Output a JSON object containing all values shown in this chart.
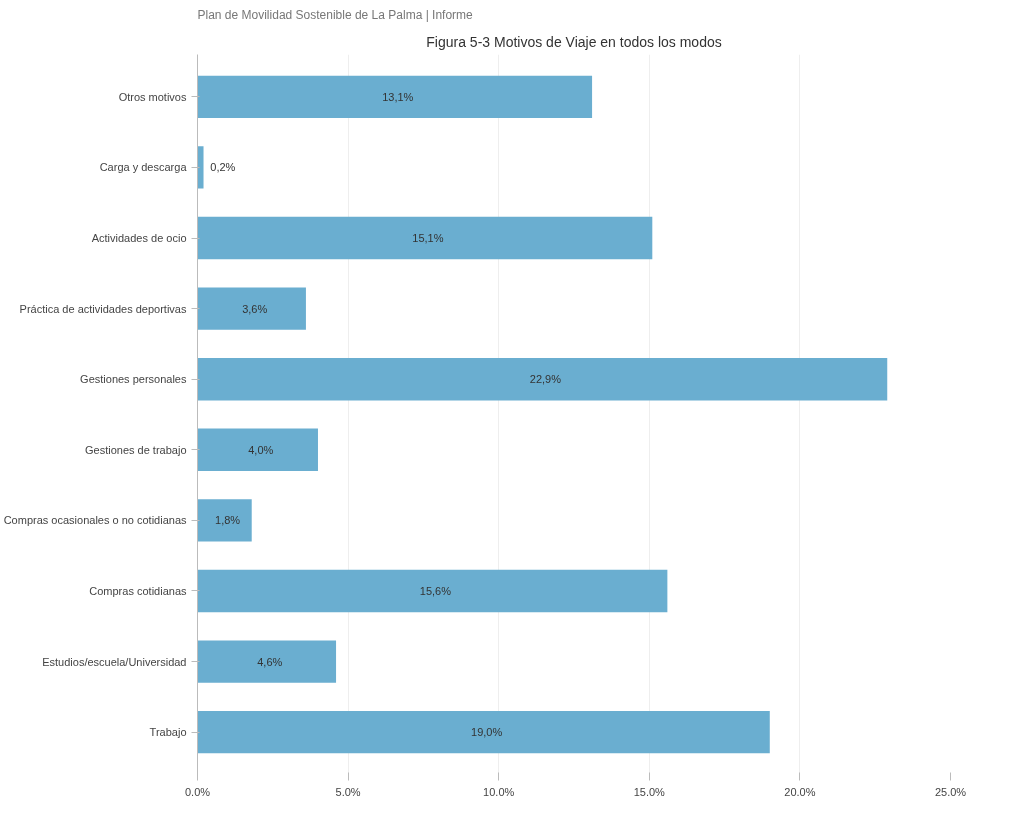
{
  "chart_data": {
    "type": "bar",
    "orientation": "horizontal",
    "title": "Figura 5-3 Motivos de Viaje en todos los modos",
    "annotations": [
      "Plan de Movilidad Sostenible de La Palma | Informe"
    ],
    "categories": [
      "Otros motivos",
      "Carga y descarga",
      "Actividades de ocio",
      "Práctica de actividades deportivas",
      "Gestiones personales",
      "Gestiones de trabajo",
      "Compras ocasionales o no cotidianas",
      "Compras cotidianas",
      "Estudios/escuela/Universidad",
      "Trabajo"
    ],
    "values": [
      13.1,
      0.2,
      15.1,
      3.6,
      22.9,
      4.0,
      1.8,
      15.6,
      4.6,
      19.0
    ],
    "value_labels": [
      "13,1%",
      "0,2%",
      "15,1%",
      "3,6%",
      "22,9%",
      "4,0%",
      "1,8%",
      "15,6%",
      "4,6%",
      "19,0%"
    ],
    "color": "#6aaed0",
    "xlim": [
      0,
      25
    ],
    "xticks": [
      {
        "value": 0,
        "label": "0.0%"
      },
      {
        "value": 5,
        "label": "5.0%"
      },
      {
        "value": 10,
        "label": "10.0%"
      },
      {
        "value": 15,
        "label": "15.0%"
      },
      {
        "value": 20,
        "label": "20.0%"
      },
      {
        "value": 25,
        "label": "25.0%"
      }
    ],
    "grid": "x"
  }
}
